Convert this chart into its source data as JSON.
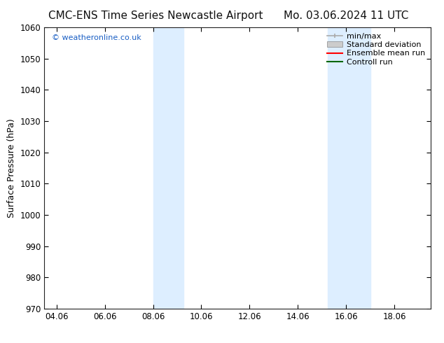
{
  "title_left": "CMC-ENS Time Series Newcastle Airport",
  "title_right": "Mo. 03.06.2024 11 UTC",
  "ylabel": "Surface Pressure (hPa)",
  "ylim": [
    970,
    1060
  ],
  "yticks": [
    970,
    980,
    990,
    1000,
    1010,
    1020,
    1030,
    1040,
    1050,
    1060
  ],
  "xtick_labels": [
    "04.06",
    "06.06",
    "08.06",
    "10.06",
    "12.06",
    "14.06",
    "16.06",
    "18.06"
  ],
  "xtick_positions": [
    4,
    6,
    8,
    10,
    12,
    14,
    16,
    18
  ],
  "xlim": [
    3.5,
    19.5
  ],
  "shaded_bands": [
    {
      "x_start": 8.0,
      "x_end": 9.25
    },
    {
      "x_start": 15.25,
      "x_end": 17.0
    }
  ],
  "shade_color": "#ddeeff",
  "background_color": "#ffffff",
  "watermark_text": "© weatheronline.co.uk",
  "watermark_color": "#1a5fc4",
  "legend_items": [
    {
      "label": "min/max",
      "color": "#aaaaaa",
      "type": "line_h"
    },
    {
      "label": "Standard deviation",
      "color": "#cccccc",
      "type": "rect"
    },
    {
      "label": "Ensemble mean run",
      "color": "#ff0000",
      "type": "line"
    },
    {
      "label": "Controll run",
      "color": "#006600",
      "type": "line"
    }
  ],
  "title_fontsize": 11,
  "tick_label_fontsize": 8.5,
  "ylabel_fontsize": 9,
  "legend_fontsize": 8
}
